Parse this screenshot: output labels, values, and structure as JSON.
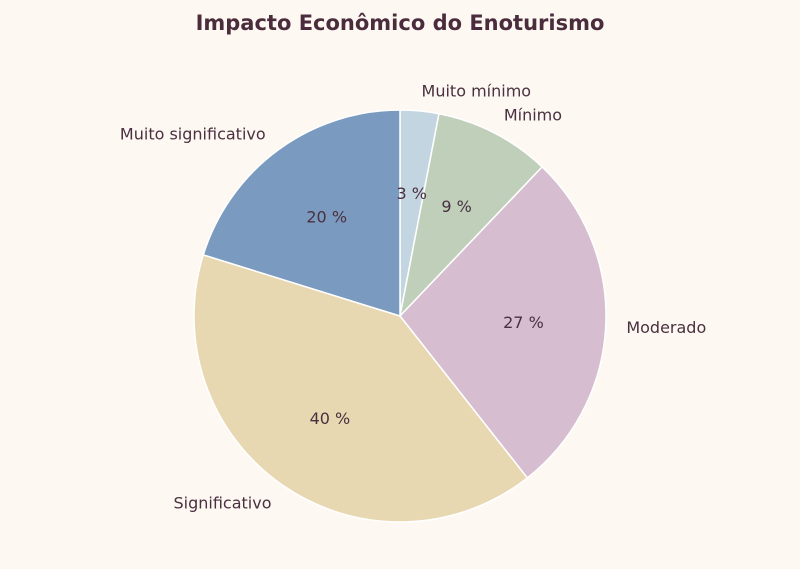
{
  "chart_data": {
    "type": "pie",
    "title": "Impacto Econômico do Enoturismo",
    "categories": [
      "Muito mínimo",
      "Mínimo",
      "Moderado",
      "Significativo",
      "Muito significativo"
    ],
    "values": [
      3,
      9,
      27,
      40,
      20
    ],
    "percent_labels": [
      "3 %",
      "9 %",
      "27 %",
      "40 %",
      "20 %"
    ],
    "colors": [
      "#c3d5e1",
      "#bfcfba",
      "#d6bed0",
      "#e8d8b2",
      "#7a9bbf"
    ],
    "start_angle": "top",
    "direction": "clockwise",
    "legend": "none"
  },
  "colors": {
    "background": "#fdf8f2",
    "text": "#4a3040",
    "title": "#4a2c3d",
    "edge": "#ffffff"
  }
}
